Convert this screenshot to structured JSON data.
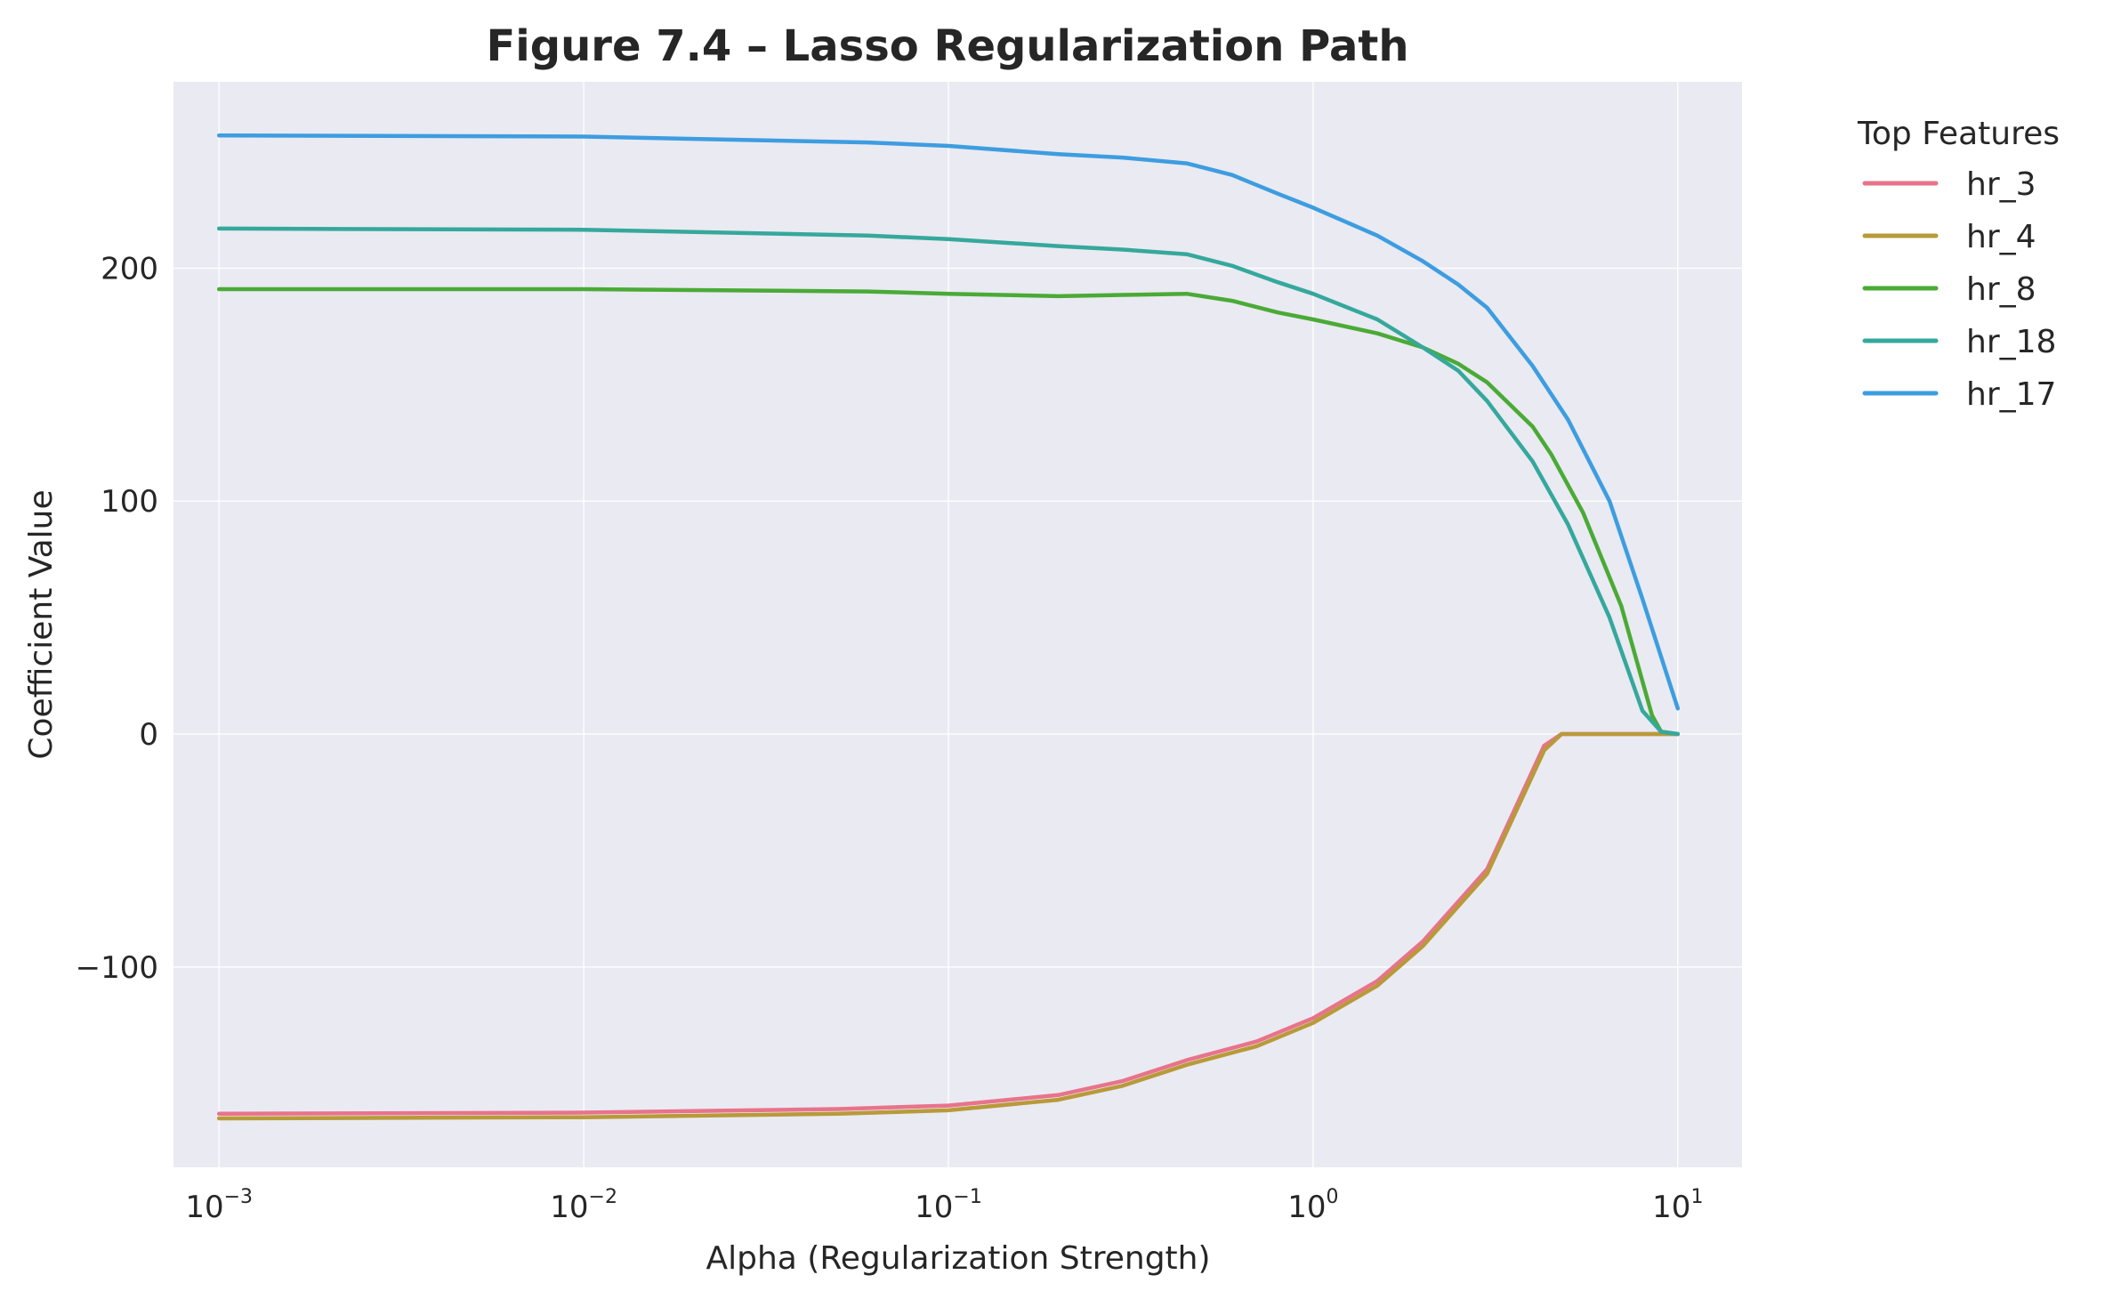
{
  "chart_data": {
    "type": "line",
    "title": "Figure 7.4 – Lasso Regularization Path",
    "xlabel": "Alpha (Regularization Strength)",
    "ylabel": "Coefficient Value",
    "xscale": "log",
    "xlim": [
      0.00075,
      15
    ],
    "ylim": [
      -186,
      280
    ],
    "x_ticks": [
      {
        "value": 0.001,
        "base": "10",
        "exp": "−3"
      },
      {
        "value": 0.01,
        "base": "10",
        "exp": "−2"
      },
      {
        "value": 0.1,
        "base": "10",
        "exp": "−1"
      },
      {
        "value": 1,
        "base": "10",
        "exp": "0"
      },
      {
        "value": 10,
        "base": "10",
        "exp": "1"
      }
    ],
    "y_ticks": [
      {
        "value": 200,
        "label": "200"
      },
      {
        "value": 100,
        "label": "100"
      },
      {
        "value": 0,
        "label": "0"
      },
      {
        "value": -100,
        "label": "−100"
      }
    ],
    "grid": true,
    "background": "#eaeaf2",
    "legend": {
      "title": "Top Features",
      "placement": "outside-right"
    },
    "series": [
      {
        "name": "hr_3",
        "color": "#e8738a",
        "points": [
          [
            0.001,
            -163
          ],
          [
            0.01,
            -162.5
          ],
          [
            0.05,
            -161
          ],
          [
            0.1,
            -159.5
          ],
          [
            0.2,
            -155
          ],
          [
            0.3,
            -149
          ],
          [
            0.45,
            -140
          ],
          [
            0.7,
            -132
          ],
          [
            1.0,
            -122
          ],
          [
            1.5,
            -106
          ],
          [
            2.0,
            -89
          ],
          [
            3.0,
            -58
          ],
          [
            4.3,
            -5
          ],
          [
            4.8,
            0
          ],
          [
            10,
            0
          ]
        ]
      },
      {
        "name": "hr_4",
        "color": "#b89a3a",
        "points": [
          [
            0.001,
            -165
          ],
          [
            0.01,
            -164.5
          ],
          [
            0.05,
            -163
          ],
          [
            0.1,
            -161.5
          ],
          [
            0.2,
            -157
          ],
          [
            0.3,
            -151
          ],
          [
            0.45,
            -142
          ],
          [
            0.7,
            -134
          ],
          [
            1.0,
            -124
          ],
          [
            1.5,
            -108
          ],
          [
            2.0,
            -91
          ],
          [
            3.0,
            -60
          ],
          [
            4.3,
            -7
          ],
          [
            4.8,
            0
          ],
          [
            10,
            0
          ]
        ]
      },
      {
        "name": "hr_8",
        "color": "#4aaa36",
        "points": [
          [
            0.001,
            191
          ],
          [
            0.01,
            191
          ],
          [
            0.06,
            190
          ],
          [
            0.1,
            189
          ],
          [
            0.2,
            188
          ],
          [
            0.3,
            188.5
          ],
          [
            0.45,
            189
          ],
          [
            0.6,
            186
          ],
          [
            0.8,
            181
          ],
          [
            1.0,
            178
          ],
          [
            1.5,
            172
          ],
          [
            2.0,
            166
          ],
          [
            2.5,
            159
          ],
          [
            3.0,
            151
          ],
          [
            4.0,
            132
          ],
          [
            4.5,
            120
          ],
          [
            5.5,
            95
          ],
          [
            7.0,
            55
          ],
          [
            8.5,
            8
          ],
          [
            9.0,
            1
          ],
          [
            10,
            0
          ]
        ]
      },
      {
        "name": "hr_18",
        "color": "#35a89c",
        "points": [
          [
            0.001,
            217
          ],
          [
            0.01,
            216.5
          ],
          [
            0.06,
            214
          ],
          [
            0.1,
            212.5
          ],
          [
            0.2,
            209.5
          ],
          [
            0.3,
            208
          ],
          [
            0.45,
            206
          ],
          [
            0.6,
            201
          ],
          [
            0.8,
            194
          ],
          [
            1.0,
            189
          ],
          [
            1.5,
            178
          ],
          [
            2.0,
            166
          ],
          [
            2.5,
            156
          ],
          [
            3.0,
            143
          ],
          [
            4.0,
            117
          ],
          [
            5.0,
            90
          ],
          [
            6.5,
            50
          ],
          [
            8.0,
            10
          ],
          [
            9.0,
            1
          ],
          [
            10,
            0
          ]
        ]
      },
      {
        "name": "hr_17",
        "color": "#3d9de0",
        "points": [
          [
            0.001,
            257
          ],
          [
            0.01,
            256.5
          ],
          [
            0.06,
            254
          ],
          [
            0.1,
            252.5
          ],
          [
            0.2,
            249
          ],
          [
            0.3,
            247.5
          ],
          [
            0.45,
            245
          ],
          [
            0.6,
            240
          ],
          [
            0.8,
            232
          ],
          [
            1.0,
            226
          ],
          [
            1.5,
            214
          ],
          [
            2.0,
            203
          ],
          [
            2.5,
            193
          ],
          [
            3.0,
            183
          ],
          [
            4.0,
            158
          ],
          [
            5.0,
            135
          ],
          [
            6.5,
            100
          ],
          [
            8.0,
            58
          ],
          [
            10,
            11
          ]
        ]
      }
    ]
  }
}
